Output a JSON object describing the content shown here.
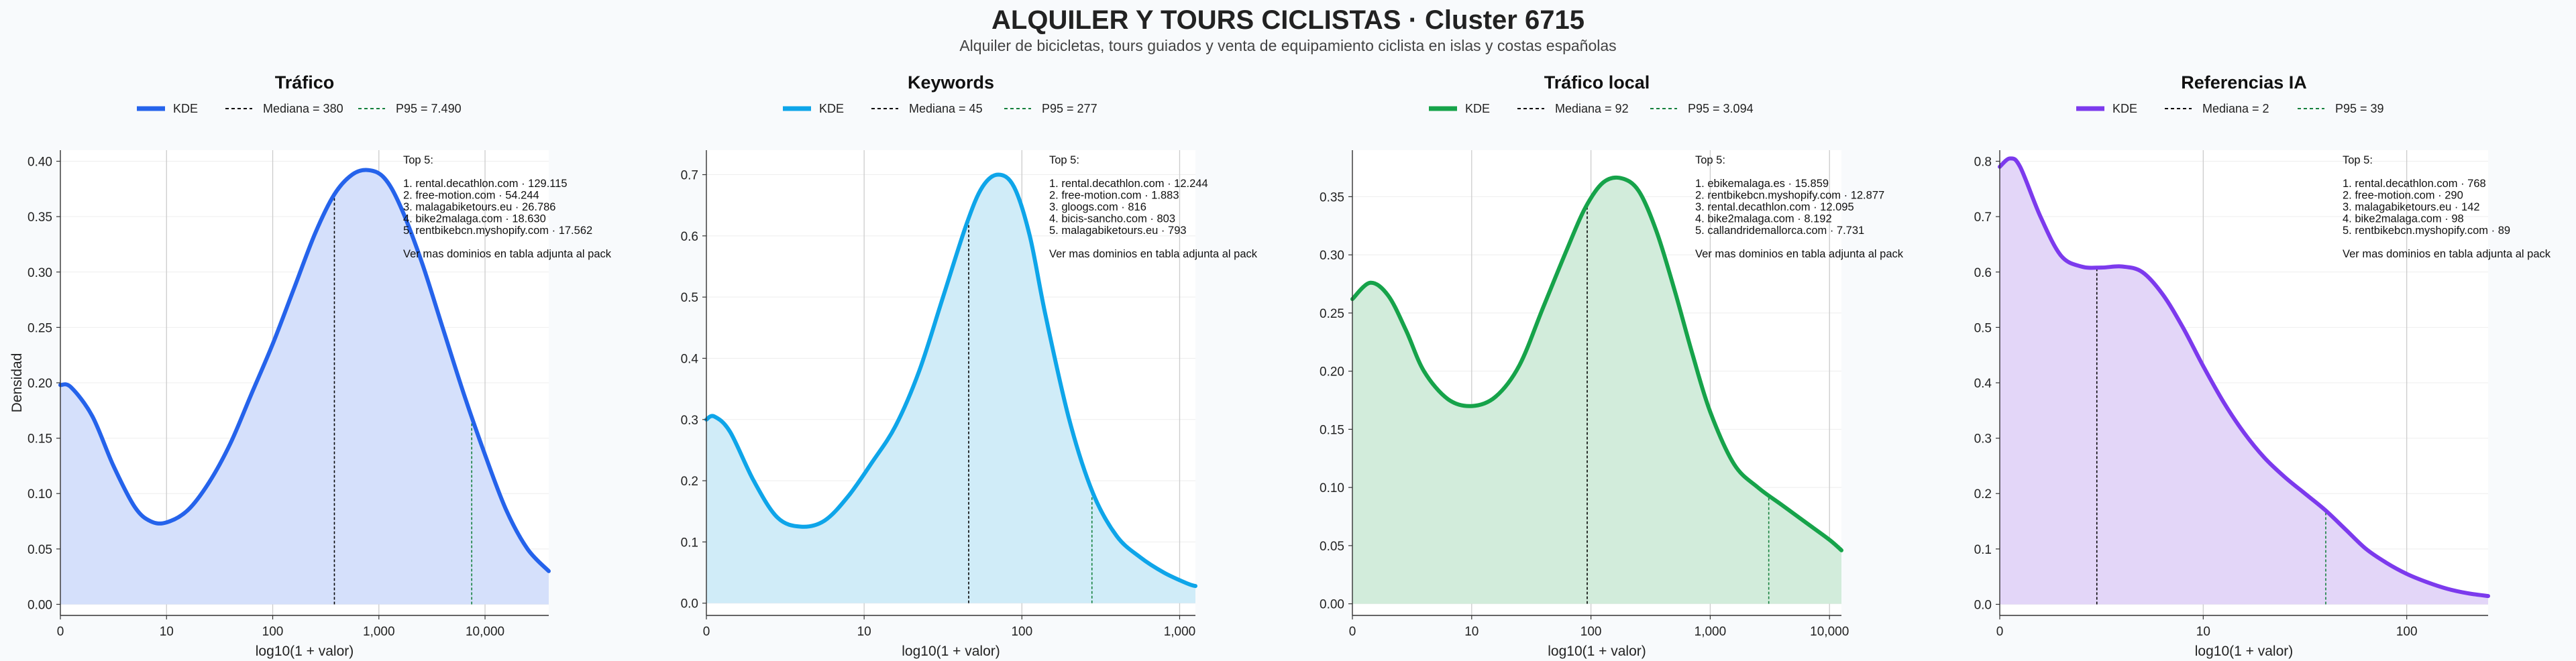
{
  "title": "ALQUILER Y TOURS CICLISTAS · Cluster 6715",
  "subtitle": "Alquiler de bicicletas, tours guiados y venta de equipamiento ciclista en islas y costas españolas",
  "chart_data": [
    {
      "type": "area",
      "title": "Tráfico",
      "color": "#2563eb",
      "fill": "#d5e0fb",
      "xlabel": "log10(1 + valor)",
      "ylabel": "Densidad",
      "x_scale": "log10(1+x)",
      "xlim": [
        0,
        4.6
      ],
      "ylim": [
        -0.01,
        0.41
      ],
      "xticks": [
        0,
        1,
        2,
        3,
        4
      ],
      "xtick_labels": [
        "0",
        "10",
        "100",
        "1,000",
        "10,000"
      ],
      "yticks": [
        0,
        0.05,
        0.1,
        0.15,
        0.2,
        0.25,
        0.3,
        0.35,
        0.4
      ],
      "ytick_labels": [
        "0.00",
        "0.05",
        "0.10",
        "0.15",
        "0.20",
        "0.25",
        "0.30",
        "0.35",
        "0.40"
      ],
      "legend": [
        "KDE",
        "Mediana = 380",
        "P95 = 7.490"
      ],
      "median": 380,
      "p95": 7490,
      "series": [
        {
          "name": "KDE",
          "x": [
            0,
            0.1,
            0.3,
            0.5,
            0.7,
            0.85,
            1.0,
            1.2,
            1.4,
            1.6,
            1.8,
            2.0,
            2.2,
            2.4,
            2.58,
            2.75,
            2.9,
            3.05,
            3.2,
            3.4,
            3.6,
            3.8,
            4.0,
            4.2,
            4.4,
            4.6
          ],
          "y": [
            0.198,
            0.196,
            0.17,
            0.125,
            0.088,
            0.075,
            0.074,
            0.085,
            0.11,
            0.145,
            0.19,
            0.235,
            0.285,
            0.335,
            0.37,
            0.388,
            0.392,
            0.385,
            0.36,
            0.31,
            0.25,
            0.19,
            0.135,
            0.085,
            0.05,
            0.03
          ]
        }
      ],
      "annotation": [
        "Top 5:",
        "",
        "1. rental.decathlon.com · 129.115",
        "2. free-motion.com · 54.244",
        "3. malagabiketours.eu · 26.786",
        "4. bike2malaga.com · 18.630",
        "5. rentbikebcn.myshopify.com · 17.562",
        "",
        "Ver mas dominios en tabla adjunta al pack"
      ]
    },
    {
      "type": "area",
      "title": "Keywords",
      "color": "#0ea5e9",
      "fill": "#d0ecf8",
      "xlabel": "log10(1 + valor)",
      "ylabel": "",
      "x_scale": "log10(1+x)",
      "xlim": [
        0,
        3.1
      ],
      "ylim": [
        -0.02,
        0.74
      ],
      "xticks": [
        0,
        1,
        2,
        3
      ],
      "xtick_labels": [
        "0",
        "10",
        "100",
        "1,000"
      ],
      "yticks": [
        0,
        0.1,
        0.2,
        0.3,
        0.4,
        0.5,
        0.6,
        0.7
      ],
      "ytick_labels": [
        "0.0",
        "0.1",
        "0.2",
        "0.3",
        "0.4",
        "0.5",
        "0.6",
        "0.7"
      ],
      "legend": [
        "KDE",
        "Mediana = 45",
        "P95 = 277"
      ],
      "median": 45,
      "p95": 277,
      "series": [
        {
          "name": "KDE",
          "x": [
            0,
            0.05,
            0.15,
            0.3,
            0.45,
            0.6,
            0.75,
            0.9,
            1.05,
            1.2,
            1.35,
            1.5,
            1.65,
            1.75,
            1.85,
            1.95,
            2.05,
            2.15,
            2.3,
            2.45,
            2.6,
            2.75,
            2.9,
            3.05,
            3.1
          ],
          "y": [
            0.3,
            0.305,
            0.28,
            0.2,
            0.14,
            0.125,
            0.135,
            0.175,
            0.23,
            0.29,
            0.38,
            0.5,
            0.62,
            0.68,
            0.7,
            0.68,
            0.6,
            0.47,
            0.3,
            0.18,
            0.11,
            0.075,
            0.05,
            0.032,
            0.028
          ]
        }
      ],
      "annotation": [
        "Top 5:",
        "",
        "1. rental.decathlon.com · 12.244",
        "2. free-motion.com · 1.883",
        "3. gloogs.com · 816",
        "4. bicis-sancho.com · 803",
        "5. malagabiketours.eu · 793",
        "",
        "Ver mas dominios en tabla adjunta al pack"
      ]
    },
    {
      "type": "area",
      "title": "Tráfico local",
      "color": "#16a34a",
      "fill": "#d2ecdb",
      "xlabel": "log10(1 + valor)",
      "ylabel": "",
      "x_scale": "log10(1+x)",
      "xlim": [
        0,
        4.1
      ],
      "ylim": [
        -0.01,
        0.39
      ],
      "xticks": [
        0,
        1,
        2,
        3,
        4
      ],
      "xtick_labels": [
        "0",
        "10",
        "100",
        "1,000",
        "10,000"
      ],
      "yticks": [
        0,
        0.05,
        0.1,
        0.15,
        0.2,
        0.25,
        0.3,
        0.35
      ],
      "ytick_labels": [
        "0.00",
        "0.05",
        "0.10",
        "0.15",
        "0.20",
        "0.25",
        "0.30",
        "0.35"
      ],
      "legend": [
        "KDE",
        "Mediana = 92",
        "P95 = 3.094"
      ],
      "median": 92,
      "p95": 3094,
      "series": [
        {
          "name": "KDE",
          "x": [
            0,
            0.15,
            0.3,
            0.45,
            0.6,
            0.8,
            1.0,
            1.2,
            1.4,
            1.6,
            1.8,
            1.95,
            2.1,
            2.25,
            2.4,
            2.55,
            2.7,
            2.85,
            3.0,
            3.2,
            3.4,
            3.6,
            3.8,
            4.0,
            4.1
          ],
          "y": [
            0.262,
            0.276,
            0.265,
            0.235,
            0.2,
            0.176,
            0.17,
            0.178,
            0.205,
            0.255,
            0.305,
            0.34,
            0.362,
            0.366,
            0.355,
            0.32,
            0.27,
            0.215,
            0.165,
            0.12,
            0.1,
            0.085,
            0.07,
            0.055,
            0.046
          ]
        }
      ],
      "annotation": [
        "Top 5:",
        "",
        "1. ebikemalaga.es · 15.859",
        "2. rentbikebcn.myshopify.com · 12.877",
        "3. rental.decathlon.com · 12.095",
        "4. bike2malaga.com · 8.192",
        "5. callandridemallorca.com · 7.731",
        "",
        "Ver mas dominios en tabla adjunta al pack"
      ]
    },
    {
      "type": "area",
      "title": "Referencias IA",
      "color": "#7c3aed",
      "fill": "#e3d6f8",
      "xlabel": "log10(1 + valor)",
      "ylabel": "",
      "x_scale": "log10(1+x)",
      "xlim": [
        0,
        2.4
      ],
      "ylim": [
        -0.02,
        0.82
      ],
      "xticks": [
        0,
        1,
        2
      ],
      "xtick_labels": [
        "0",
        "10",
        "100"
      ],
      "yticks": [
        0,
        0.1,
        0.2,
        0.3,
        0.4,
        0.5,
        0.6,
        0.7,
        0.8
      ],
      "ytick_labels": [
        "0.0",
        "0.1",
        "0.2",
        "0.3",
        "0.4",
        "0.5",
        "0.6",
        "0.7",
        "0.8"
      ],
      "legend": [
        "KDE",
        "Mediana = 2",
        "P95 = 39"
      ],
      "median": 2,
      "p95": 39,
      "series": [
        {
          "name": "KDE",
          "x": [
            0,
            0.05,
            0.1,
            0.2,
            0.3,
            0.4,
            0.5,
            0.6,
            0.7,
            0.8,
            0.9,
            1.0,
            1.1,
            1.2,
            1.3,
            1.4,
            1.5,
            1.6,
            1.7,
            1.8,
            1.9,
            2.0,
            2.1,
            2.2,
            2.3,
            2.4
          ],
          "y": [
            0.79,
            0.805,
            0.79,
            0.7,
            0.63,
            0.61,
            0.608,
            0.61,
            0.6,
            0.56,
            0.5,
            0.43,
            0.365,
            0.31,
            0.265,
            0.23,
            0.2,
            0.17,
            0.135,
            0.1,
            0.075,
            0.055,
            0.04,
            0.028,
            0.02,
            0.015
          ]
        }
      ],
      "annotation": [
        "Top 5:",
        "",
        "1. rental.decathlon.com · 768",
        "2. free-motion.com · 290",
        "3. malagabiketours.eu · 142",
        "4. bike2malaga.com · 98",
        "5. rentbikebcn.myshopify.com · 89",
        "",
        "Ver mas dominios en tabla adjunta al pack"
      ]
    }
  ]
}
